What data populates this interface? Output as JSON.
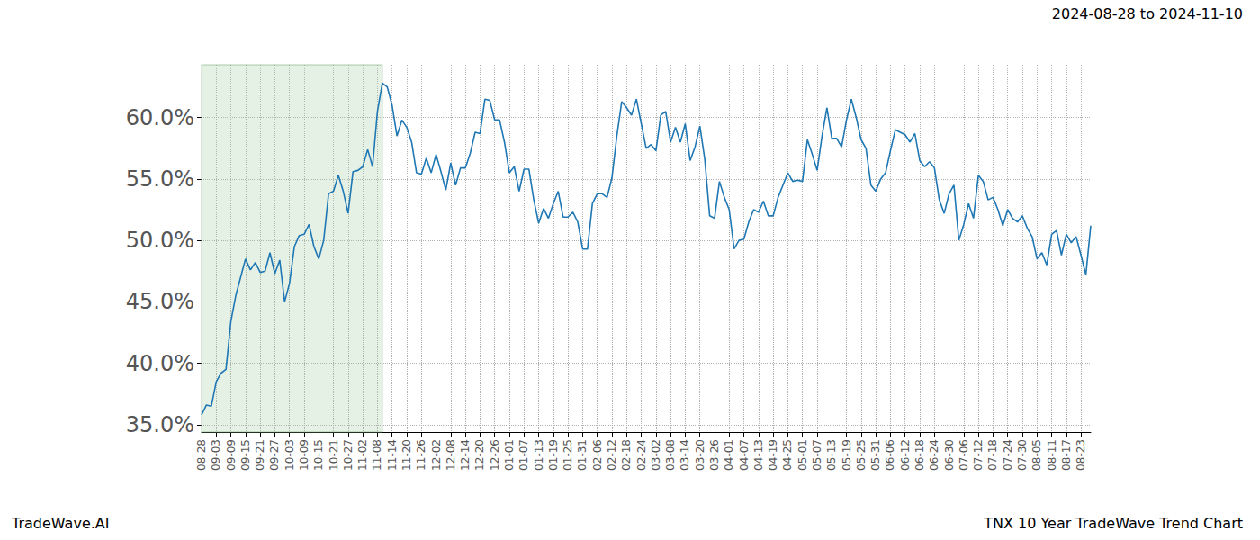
{
  "chart_data": {
    "type": "line",
    "title": "2024-08-28 to 2024-11-10",
    "annotations": [
      "TradeWave.AI",
      "TNX 10 Year TradeWave Trend Chart"
    ],
    "highlight": {
      "start": "2024-08-28",
      "end": "2024-11-10"
    },
    "categories": [
      "08-28",
      null,
      null,
      "09-03",
      null,
      null,
      "09-09",
      null,
      null,
      "09-15",
      null,
      null,
      "09-21",
      null,
      null,
      "09-27",
      null,
      null,
      "10-03",
      null,
      null,
      "10-09",
      null,
      null,
      "10-15",
      null,
      null,
      "10-21",
      null,
      null,
      "10-27",
      null,
      null,
      "11-02",
      null,
      null,
      "11-08",
      null,
      null,
      "11-14",
      null,
      null,
      "11-20",
      null,
      null,
      "11-26",
      null,
      null,
      "12-02",
      null,
      null,
      "12-08",
      null,
      null,
      "12-14",
      null,
      null,
      "12-20",
      null,
      null,
      "12-26",
      null,
      null,
      "01-01",
      null,
      null,
      "01-07",
      null,
      null,
      "01-13",
      null,
      null,
      "01-19",
      null,
      null,
      "01-25",
      null,
      null,
      "01-31",
      null,
      null,
      "02-06",
      null,
      null,
      "02-12",
      null,
      null,
      "02-18",
      null,
      null,
      "02-24",
      null,
      null,
      "03-02",
      null,
      null,
      "03-08",
      null,
      null,
      "03-14",
      null,
      null,
      "03-20",
      null,
      null,
      "03-26",
      null,
      null,
      "04-01",
      null,
      null,
      "04-07",
      null,
      null,
      "04-13",
      null,
      null,
      "04-19",
      null,
      null,
      "04-25",
      null,
      null,
      "05-01",
      null,
      null,
      "05-07",
      null,
      null,
      "05-13",
      null,
      null,
      "05-19",
      null,
      null,
      "05-25",
      null,
      null,
      "05-31",
      null,
      null,
      "06-06",
      null,
      null,
      "06-12",
      null,
      null,
      "06-18",
      null,
      null,
      "06-24",
      null,
      null,
      "06-30",
      null,
      null,
      "07-06",
      null,
      null,
      "07-12",
      null,
      null,
      "07-18",
      null,
      null,
      "07-24",
      null,
      null,
      "07-30",
      null,
      null,
      "08-05",
      null,
      null,
      "08-11",
      null,
      null,
      "08-17",
      null,
      null,
      "08-23",
      null,
      null
    ],
    "values": [
      35.8,
      36.6,
      36.5,
      38.5,
      39.2,
      39.5,
      43.4,
      45.5,
      47.0,
      48.5,
      47.6,
      48.2,
      47.4,
      47.5,
      49.0,
      47.3,
      48.4,
      45.0,
      46.5,
      49.5,
      50.4,
      50.5,
      51.3,
      49.5,
      48.5,
      50.0,
      53.8,
      54.0,
      55.3,
      54.0,
      52.2,
      55.6,
      55.7,
      56.0,
      57.4,
      56.0,
      60.5,
      62.8,
      62.5,
      61.0,
      58.5,
      59.8,
      59.2,
      58.0,
      55.5,
      55.4,
      56.7,
      55.5,
      57.0,
      55.6,
      54.1,
      56.3,
      54.5,
      55.9,
      55.9,
      57.1,
      58.8,
      58.7,
      61.5,
      61.4,
      59.8,
      59.8,
      58.0,
      55.5,
      56.0,
      54.0,
      55.8,
      55.8,
      53.3,
      51.4,
      52.6,
      51.8,
      53.0,
      54.0,
      51.9,
      51.9,
      52.3,
      51.5,
      49.3,
      49.3,
      53.0,
      53.8,
      53.8,
      53.5,
      55.1,
      58.5,
      61.3,
      60.8,
      60.2,
      61.5,
      59.5,
      57.5,
      57.8,
      57.3,
      60.2,
      60.5,
      58.0,
      59.2,
      58.0,
      59.5,
      56.5,
      57.6,
      59.3,
      56.6,
      52.0,
      51.8,
      54.8,
      53.5,
      52.5,
      49.3,
      50.0,
      50.1,
      51.5,
      52.5,
      52.3,
      53.2,
      52.0,
      52.0,
      53.5,
      54.5,
      55.5,
      54.8,
      54.9,
      54.8,
      58.2,
      57.0,
      55.7,
      58.5,
      60.8,
      58.3,
      58.3,
      57.6,
      59.8,
      61.5,
      60.0,
      58.2,
      57.5,
      54.5,
      54.0,
      55.0,
      55.5,
      57.3,
      59.0,
      58.8,
      58.6,
      58.0,
      58.7,
      56.5,
      56.0,
      56.4,
      55.9,
      53.3,
      52.2,
      53.8,
      54.5,
      50.0,
      51.3,
      53.0,
      51.8,
      55.3,
      54.8,
      53.3,
      53.5,
      52.5,
      51.2,
      52.5,
      51.8,
      51.5,
      52.0,
      51.0,
      50.3,
      48.5,
      49.0,
      48.0,
      50.5,
      50.8,
      48.8,
      50.5,
      49.8,
      50.3,
      48.8,
      47.2,
      51.2
    ],
    "color": "#1f77b4",
    "ylim": [
      34.4,
      64.3
    ],
    "yticks": [
      {
        "value": 35,
        "label": "35.0%"
      },
      {
        "value": 40,
        "label": "40.0%"
      },
      {
        "value": 45,
        "label": "45.0%"
      },
      {
        "value": 50,
        "label": "50.0%"
      },
      {
        "value": 55,
        "label": "55.0%"
      },
      {
        "value": 60,
        "label": "60.0%"
      }
    ],
    "grid": true
  }
}
